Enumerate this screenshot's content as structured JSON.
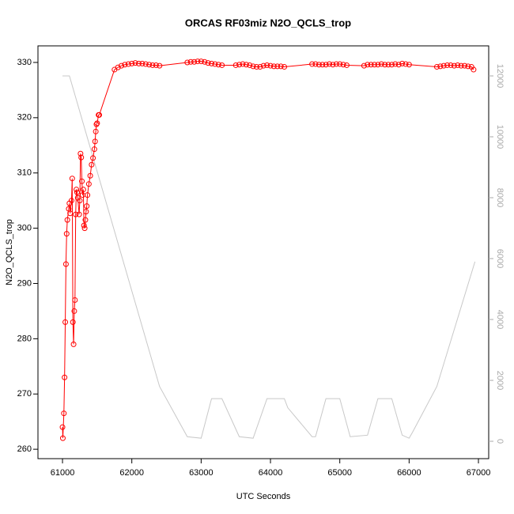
{
  "chart_data": {
    "type": "line",
    "title": "ORCAS RF03miz N2O_QCLS_trop",
    "xlabel": "UTC Seconds",
    "ylabel": "N2O_QCLS_trop",
    "xlim": [
      60646,
      67148
    ],
    "xticks": [
      61000,
      62000,
      63000,
      64000,
      65000,
      66000,
      67000
    ],
    "ylim": [
      258.3,
      333.0
    ],
    "yticks": [
      260,
      270,
      280,
      290,
      300,
      310,
      320,
      330
    ],
    "y2lim": [
      -571,
      12987
    ],
    "y2ticks": [
      0,
      2000,
      4000,
      6000,
      8000,
      10000,
      12000
    ],
    "series": [
      {
        "color": "#ff0000",
        "markers": true,
        "x": [
          61000,
          61005,
          61020,
          61030,
          61040,
          61050,
          61060,
          61070,
          61090,
          61100,
          61110,
          61130,
          61140,
          61150,
          61160,
          61170,
          61180,
          61190,
          61200,
          61210,
          61220,
          61240,
          61250,
          61260,
          61270,
          61280,
          61290,
          61300,
          61310,
          61320,
          61330,
          61340,
          61350,
          61360,
          61380,
          61400,
          61420,
          61440,
          61460,
          61470,
          61480,
          61490,
          61500,
          61520,
          61530,
          61750,
          61800,
          61850,
          61900,
          61950,
          62000,
          62050,
          62100,
          62150,
          62200,
          62250,
          62300,
          62350,
          62400,
          62800,
          62850,
          62900,
          62950,
          63000,
          63050,
          63100,
          63150,
          63200,
          63250,
          63300,
          63500,
          63550,
          63600,
          63650,
          63700,
          63750,
          63800,
          63850,
          63900,
          63950,
          64000,
          64050,
          64100,
          64150,
          64200,
          64600,
          64650,
          64700,
          64750,
          64800,
          64850,
          64900,
          64950,
          65000,
          65050,
          65100,
          65350,
          65400,
          65450,
          65500,
          65550,
          65600,
          65650,
          65700,
          65750,
          65800,
          65850,
          65900,
          65950,
          66000,
          66400,
          66450,
          66500,
          66550,
          66600,
          66650,
          66700,
          66750,
          66800,
          66850,
          66900,
          66930
        ],
        "values": [
          264,
          262,
          266.5,
          273,
          283,
          293.5,
          299,
          301.5,
          303.5,
          304.5,
          302.7,
          305,
          309,
          283,
          279,
          285,
          287,
          302.5,
          307,
          306.5,
          305.5,
          302.5,
          305,
          313.5,
          312.8,
          308.5,
          306,
          307,
          300.5,
          300,
          301.5,
          303,
          304,
          306,
          308,
          309.5,
          311.5,
          312.7,
          314.3,
          315.7,
          317.5,
          318.8,
          319,
          320.5,
          320.5,
          328.7,
          329.1,
          329.4,
          329.6,
          329.7,
          329.8,
          329.9,
          329.8,
          329.8,
          329.7,
          329.6,
          329.5,
          329.5,
          329.4,
          330.0,
          330.1,
          330.1,
          330.2,
          330.2,
          330.1,
          329.9,
          329.8,
          329.7,
          329.6,
          329.5,
          329.5,
          329.6,
          329.7,
          329.6,
          329.5,
          329.3,
          329.2,
          329.2,
          329.4,
          329.5,
          329.4,
          329.3,
          329.3,
          329.3,
          329.2,
          329.7,
          329.7,
          329.6,
          329.6,
          329.6,
          329.7,
          329.6,
          329.7,
          329.7,
          329.6,
          329.5,
          329.4,
          329.6,
          329.6,
          329.6,
          329.6,
          329.7,
          329.6,
          329.6,
          329.6,
          329.7,
          329.6,
          329.8,
          329.7,
          329.6,
          329.2,
          329.3,
          329.4,
          329.5,
          329.5,
          329.4,
          329.5,
          329.4,
          329.4,
          329.3,
          329.2,
          328.7
        ]
      },
      {
        "color": "#c8c8c8",
        "axis": "y2",
        "markers": false,
        "x": [
          61000,
          61100,
          62400,
          62800,
          63000,
          63150,
          63300,
          63550,
          63750,
          63950,
          64200,
          64250,
          64600,
          64650,
          64800,
          65000,
          65150,
          65400,
          65550,
          65750,
          65900,
          66000,
          66050,
          66400,
          66950
        ],
        "values": [
          12000,
          12000,
          1800,
          150,
          100,
          1400,
          1400,
          150,
          100,
          1400,
          1400,
          1100,
          150,
          150,
          1400,
          1400,
          150,
          200,
          1400,
          1400,
          200,
          100,
          300,
          1800,
          5900
        ]
      }
    ]
  }
}
